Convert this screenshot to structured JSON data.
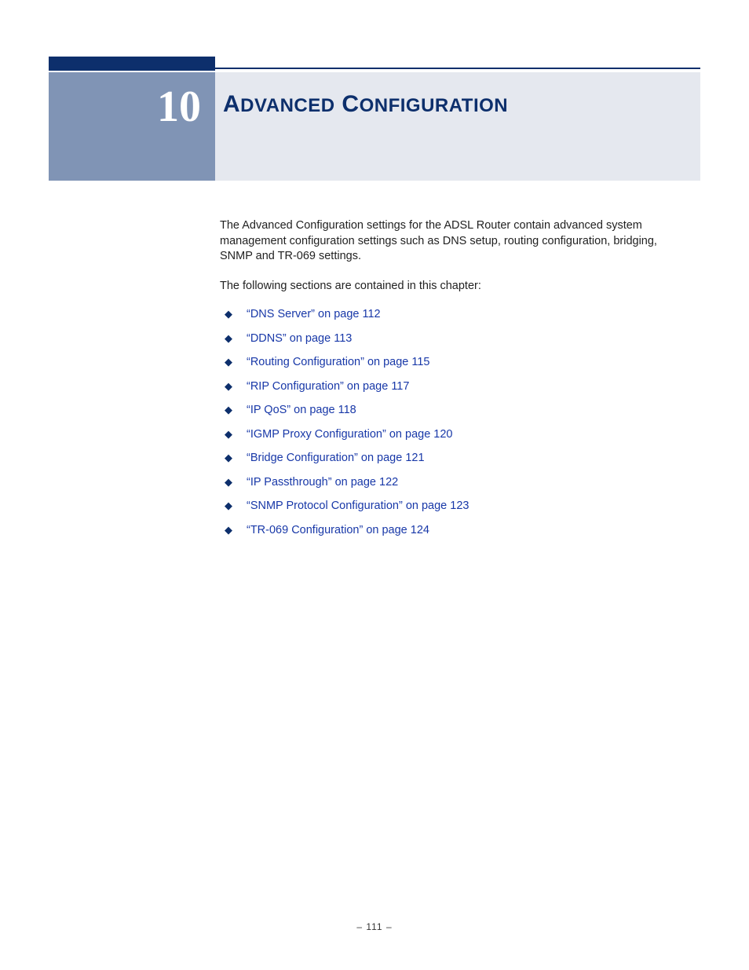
{
  "chapter": {
    "number": "10",
    "title_parts": [
      "A",
      "DVANCED",
      " C",
      "ONFIGURATION"
    ]
  },
  "paragraphs": {
    "intro": "The Advanced Configuration settings for the ADSL Router contain advanced system management configuration settings such as DNS setup, routing configuration, bridging, SNMP and TR-069 settings.",
    "lead": "The following sections are contained in this chapter:"
  },
  "toc": [
    "“DNS Server” on page 112",
    "“DDNS” on page 113",
    "“Routing Configuration” on page 115",
    "“RIP Configuration” on page 117",
    "“IP QoS” on page 118",
    "“IGMP Proxy Configuration” on page 120",
    "“Bridge Configuration” on page 121",
    "“IP Passthrough” on page 122",
    "“SNMP Protocol Configuration” on page 123",
    "“TR-069 Configuration” on page 124"
  ],
  "footer": "–  111  –",
  "colors": {
    "brand_dark": "#0d2f6c",
    "brand_muted": "#8094b5",
    "title_bg": "#e5e8ef",
    "link": "#1838a8",
    "text": "#222222"
  }
}
